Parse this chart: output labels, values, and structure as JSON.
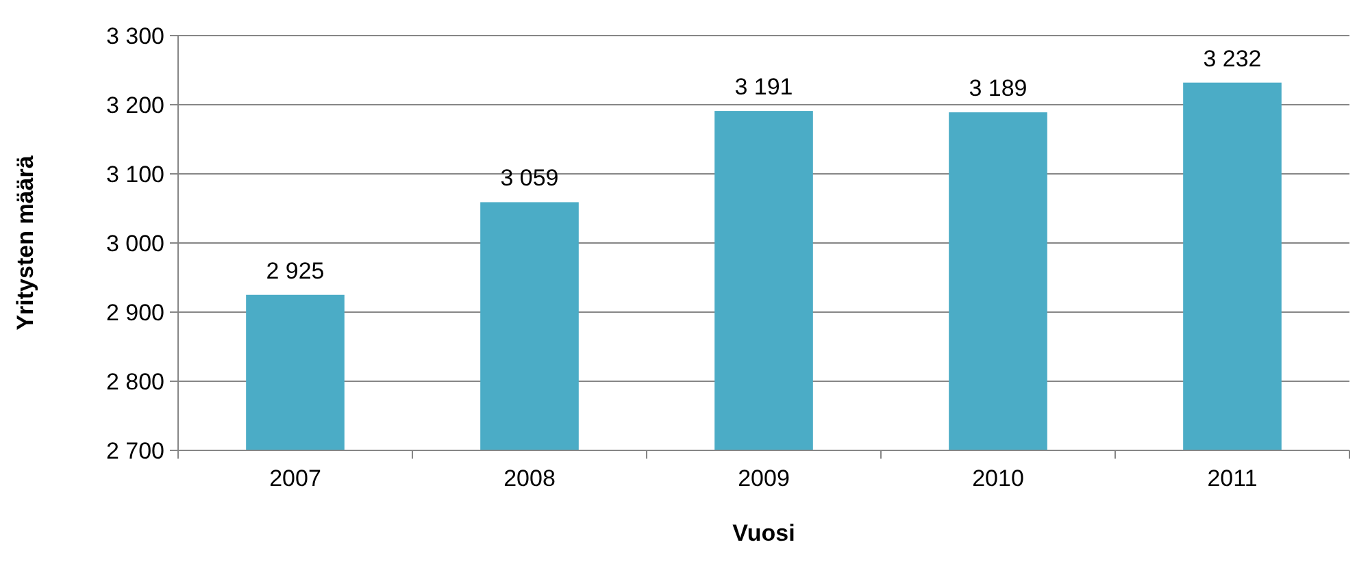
{
  "chart_data": {
    "type": "bar",
    "xlabel": "Vuosi",
    "ylabel": "Yritysten määrä",
    "categories": [
      "2007",
      "2008",
      "2009",
      "2010",
      "2011"
    ],
    "values": [
      2925,
      3059,
      3191,
      3189,
      3232
    ],
    "value_labels": [
      "2 925",
      "3 059",
      "3 191",
      "3 189",
      "3 232"
    ],
    "color": "#4bacc6",
    "ylim": [
      2700,
      3300
    ],
    "yticks": [
      {
        "value": 2700,
        "label": "2 700"
      },
      {
        "value": 2800,
        "label": "2 800"
      },
      {
        "value": 2900,
        "label": "2 900"
      },
      {
        "value": 3000,
        "label": "3 000"
      },
      {
        "value": 3100,
        "label": "3 100"
      },
      {
        "value": 3200,
        "label": "3 200"
      },
      {
        "value": 3300,
        "label": "3 300"
      }
    ],
    "grid": "y"
  }
}
